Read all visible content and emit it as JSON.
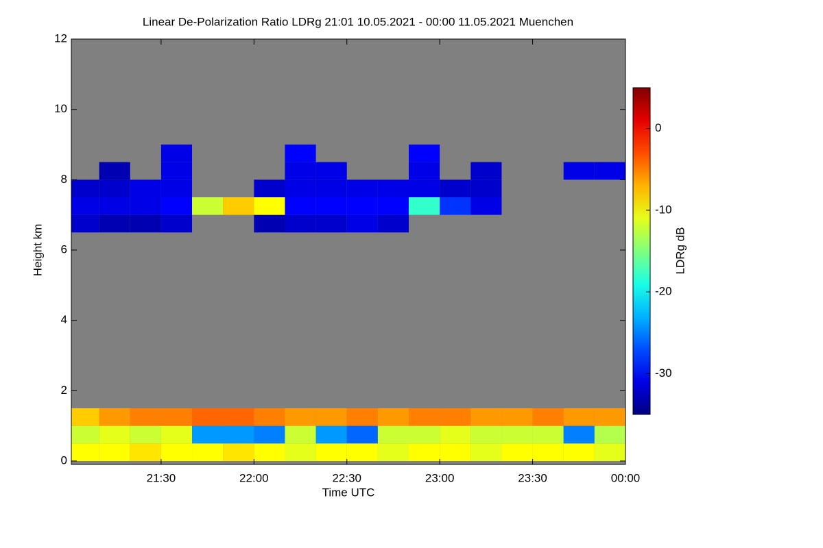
{
  "chart_data": {
    "type": "heatmap",
    "title": "Linear De-Polarization Ratio LDRg   21:01 10.05.2021 - 00:00 11.05.2021 Muenchen",
    "x_label": "Time UTC",
    "y_label": "Height km",
    "colorbar_label": "LDRg dB",
    "background_color": "#808080",
    "colormap": "jet",
    "xlim": [
      21.0167,
      24
    ],
    "xticks": [
      {
        "value": 21.5,
        "label": "21:30"
      },
      {
        "value": 22,
        "label": "22:00"
      },
      {
        "value": 22.5,
        "label": "22:30"
      },
      {
        "value": 23,
        "label": "23:00"
      },
      {
        "value": 23.5,
        "label": "23:30"
      },
      {
        "value": 24,
        "label": "00:00"
      }
    ],
    "ylim": [
      0,
      12
    ],
    "yticks": [
      0,
      2,
      4,
      6,
      8,
      10,
      12
    ],
    "zlim": [
      -35,
      5
    ],
    "zticks": [
      0,
      -10,
      -20,
      -30
    ],
    "x_edges": [
      21.0167,
      21.1667,
      21.3333,
      21.5,
      21.6667,
      21.8333,
      22,
      22.1667,
      22.3333,
      22.5,
      22.6667,
      22.8333,
      23,
      23.1667,
      23.3333,
      23.5,
      23.6667,
      23.8333,
      24
    ],
    "y_edges": [
      0,
      0.5,
      1,
      1.5,
      6.5,
      7,
      7.5,
      8,
      8.5,
      9
    ],
    "z": [
      [
        -10,
        -12,
        -8,
        null,
        -32,
        -31,
        -32,
        null,
        null
      ],
      [
        -10,
        -11,
        -6,
        null,
        -33,
        -31,
        -32,
        -33,
        null
      ],
      [
        -9,
        -12,
        -5,
        null,
        -33,
        -31,
        -31,
        null,
        null
      ],
      [
        -10,
        -11,
        -5,
        null,
        -32,
        -30,
        -31,
        -31,
        -31
      ],
      [
        -10,
        -24,
        -4,
        null,
        null,
        -12,
        null,
        null,
        null
      ],
      [
        -9,
        -24,
        -4,
        null,
        null,
        -8,
        null,
        null,
        null
      ],
      [
        -10,
        -25,
        -5,
        null,
        -33,
        -10,
        -32,
        null,
        null
      ],
      [
        -11,
        -12,
        -6,
        null,
        -32,
        -30,
        -31,
        -31,
        -30
      ],
      [
        -10,
        -24,
        -6,
        null,
        -32,
        -30,
        -31,
        -31,
        null
      ],
      [
        -10,
        -26,
        -5,
        null,
        -31,
        -30,
        -31,
        null,
        null
      ],
      [
        -11,
        -12,
        -6,
        null,
        -32,
        -30,
        -31,
        null,
        null
      ],
      [
        -10,
        -12,
        -5,
        null,
        null,
        -18,
        -31,
        -31,
        -30
      ],
      [
        -10,
        -11,
        -5,
        null,
        null,
        -28,
        -32,
        null,
        null
      ],
      [
        -11,
        -12,
        -6,
        null,
        null,
        -31,
        -32,
        -32,
        null
      ],
      [
        -10,
        -12,
        -6,
        null,
        null,
        null,
        null,
        null,
        null
      ],
      [
        -10,
        -12,
        -5,
        null,
        null,
        null,
        null,
        null,
        null
      ],
      [
        -10,
        -25,
        -6,
        null,
        null,
        null,
        null,
        -31,
        null
      ],
      [
        -11,
        -13,
        -6,
        null,
        null,
        null,
        null,
        -31,
        null
      ]
    ]
  }
}
